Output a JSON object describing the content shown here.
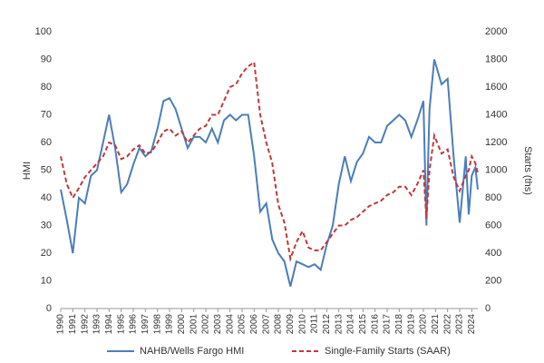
{
  "chart_data": {
    "type": "line",
    "x": [
      1990,
      1990.5,
      1991,
      1991.5,
      1992,
      1992.5,
      1993,
      1993.5,
      1994,
      1994.5,
      1995,
      1995.5,
      1996,
      1996.5,
      1997,
      1997.5,
      1998,
      1998.5,
      1999,
      1999.5,
      2000,
      2000.5,
      2001,
      2001.5,
      2002,
      2002.5,
      2003,
      2003.5,
      2004,
      2004.5,
      2005,
      2005.5,
      2006,
      2006.5,
      2007,
      2007.5,
      2008,
      2008.5,
      2009,
      2009.5,
      2010,
      2010.5,
      2011,
      2011.5,
      2012,
      2012.5,
      2013,
      2013.5,
      2014,
      2014.5,
      2015,
      2015.5,
      2016,
      2016.5,
      2017,
      2017.5,
      2018,
      2018.5,
      2019,
      2019.5,
      2020,
      2020.25,
      2020.5,
      2020.9,
      2021.5,
      2022,
      2022.5,
      2023,
      2023.5,
      2023.75,
      2024,
      2024.3,
      2024.5
    ],
    "series": [
      {
        "name": "NAHB/Wells Fargo HMI",
        "color": "#4a7ebb",
        "dash": false,
        "values": [
          43,
          32,
          20,
          40,
          38,
          48,
          50,
          60,
          70,
          58,
          42,
          45,
          52,
          58,
          55,
          57,
          65,
          75,
          76,
          72,
          65,
          58,
          62,
          62,
          60,
          65,
          60,
          68,
          70,
          68,
          70,
          70,
          55,
          35,
          38,
          25,
          20,
          17,
          8,
          17,
          16,
          15,
          16,
          14,
          23,
          30,
          45,
          55,
          46,
          53,
          56,
          62,
          60,
          60,
          66,
          68,
          70,
          68,
          62,
          68,
          75,
          30,
          72,
          90,
          81,
          83,
          55,
          31,
          55,
          34,
          48,
          51,
          43
        ]
      },
      {
        "name": "Single-Family Starts (SAAR)",
        "color": "#c0393b",
        "dash": true,
        "axis": "y2",
        "values": [
          1100,
          900,
          800,
          870,
          950,
          1000,
          1050,
          1100,
          1200,
          1180,
          1080,
          1100,
          1150,
          1180,
          1120,
          1130,
          1200,
          1280,
          1300,
          1250,
          1280,
          1200,
          1250,
          1300,
          1320,
          1400,
          1400,
          1500,
          1600,
          1620,
          1700,
          1750,
          1780,
          1400,
          1200,
          1050,
          750,
          620,
          360,
          480,
          560,
          440,
          420,
          420,
          480,
          540,
          600,
          600,
          640,
          660,
          700,
          740,
          760,
          780,
          820,
          840,
          880,
          880,
          820,
          900,
          1000,
          650,
          1000,
          1250,
          1120,
          1150,
          950,
          850,
          960,
          1000,
          1100,
          1050,
          980
        ]
      }
    ],
    "y_label": "HMI",
    "y2_label": "Starts (ths)",
    "xlim": [
      1990,
      2024.5
    ],
    "xticks": [
      1990,
      1991,
      1992,
      1993,
      1994,
      1995,
      1996,
      1997,
      1998,
      1999,
      2000,
      2001,
      2002,
      2003,
      2004,
      2005,
      2006,
      2007,
      2008,
      2009,
      2010,
      2011,
      2012,
      2013,
      2014,
      2015,
      2016,
      2017,
      2018,
      2019,
      2020,
      2021,
      2022,
      2023,
      2024
    ],
    "ylim": [
      0,
      100
    ],
    "yticks": [
      0,
      10,
      20,
      30,
      40,
      50,
      60,
      70,
      80,
      90,
      100
    ],
    "y2lim": [
      0,
      2000
    ],
    "y2ticks": [
      0,
      200,
      400,
      600,
      800,
      1000,
      1200,
      1400,
      1600,
      1800,
      2000
    ],
    "legend": "bottom"
  }
}
